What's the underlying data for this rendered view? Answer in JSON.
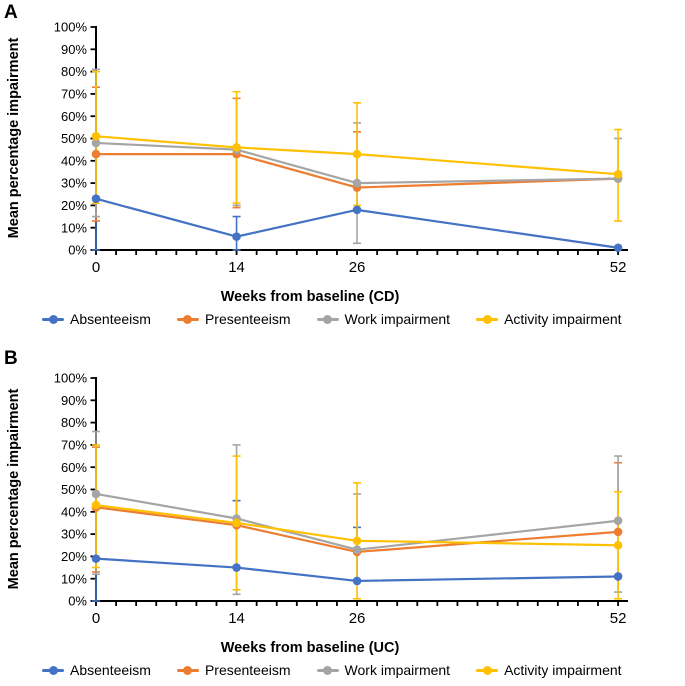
{
  "chart_data": [
    {
      "type": "line",
      "panel_label": "A",
      "title": "",
      "xlabel": "Weeks from baseline (CD)",
      "ylabel": "Mean percentage impairment",
      "x": [
        0,
        14,
        26,
        52
      ],
      "xlim": [
        0,
        53
      ],
      "ylim": [
        0,
        100
      ],
      "grid": "off",
      "legend_position": "bottom",
      "y_ticks": [
        "0%",
        "10%",
        "20%",
        "30%",
        "40%",
        "50%",
        "60%",
        "70%",
        "80%",
        "90%",
        "100%"
      ],
      "x_ticks": [
        {
          "week": 0,
          "label": "0"
        },
        {
          "week": 14,
          "label": "14"
        },
        {
          "week": 26,
          "label": "26"
        },
        {
          "week": 52,
          "label": "52"
        }
      ],
      "x_minor_tick_step": 2,
      "series": [
        {
          "name": "Absenteeism",
          "color": "#4472C4",
          "values": [
            23,
            6,
            18,
            1
          ],
          "error_low": [
            0,
            0,
            null,
            null
          ],
          "error_high": [
            null,
            15,
            null,
            null
          ]
        },
        {
          "name": "Presenteeism",
          "color": "#ED7D31",
          "values": [
            43,
            43,
            28,
            32
          ],
          "error_low": [
            13,
            19,
            null,
            null
          ],
          "error_high": [
            73,
            68,
            53,
            null
          ]
        },
        {
          "name": "Work impairment",
          "color": "#A5A5A5",
          "values": [
            48,
            45,
            30,
            32
          ],
          "error_low": [
            15,
            20,
            3,
            null
          ],
          "error_high": [
            81,
            null,
            57,
            50
          ]
        },
        {
          "name": "Activity impairment",
          "color": "#FFC000",
          "values": [
            51,
            46,
            43,
            34
          ],
          "error_low": [
            21,
            21,
            20,
            13
          ],
          "error_high": [
            80,
            71,
            66,
            54
          ]
        }
      ]
    },
    {
      "type": "line",
      "panel_label": "B",
      "title": "",
      "xlabel": "Weeks from baseline (UC)",
      "ylabel": "Mean percentage impairment",
      "x": [
        0,
        14,
        26,
        52
      ],
      "xlim": [
        0,
        53
      ],
      "ylim": [
        0,
        100
      ],
      "grid": "off",
      "legend_position": "bottom",
      "y_ticks": [
        "0%",
        "10%",
        "20%",
        "30%",
        "40%",
        "50%",
        "60%",
        "70%",
        "80%",
        "90%",
        "100%"
      ],
      "x_ticks": [
        {
          "week": 0,
          "label": "0"
        },
        {
          "week": 14,
          "label": "14"
        },
        {
          "week": 26,
          "label": "26"
        },
        {
          "week": 52,
          "label": "52"
        }
      ],
      "x_minor_tick_step": 2,
      "series": [
        {
          "name": "Absenteeism",
          "color": "#4472C4",
          "values": [
            19,
            15,
            9,
            11
          ],
          "error_low": [
            0,
            null,
            null,
            null
          ],
          "error_high": [
            null,
            45,
            33,
            null
          ]
        },
        {
          "name": "Presenteeism",
          "color": "#ED7D31",
          "values": [
            42,
            34,
            22,
            31
          ],
          "error_low": [
            13,
            null,
            null,
            null
          ],
          "error_high": [
            69,
            null,
            null,
            62
          ]
        },
        {
          "name": "Work impairment",
          "color": "#A5A5A5",
          "values": [
            48,
            37,
            23,
            36
          ],
          "error_low": [
            12,
            3,
            null,
            4
          ],
          "error_high": [
            76,
            70,
            48,
            65
          ]
        },
        {
          "name": "Activity impairment",
          "color": "#FFC000",
          "values": [
            43,
            35,
            27,
            25
          ],
          "error_low": [
            15,
            5,
            1,
            1
          ],
          "error_high": [
            70,
            65,
            53,
            49
          ]
        }
      ]
    }
  ]
}
